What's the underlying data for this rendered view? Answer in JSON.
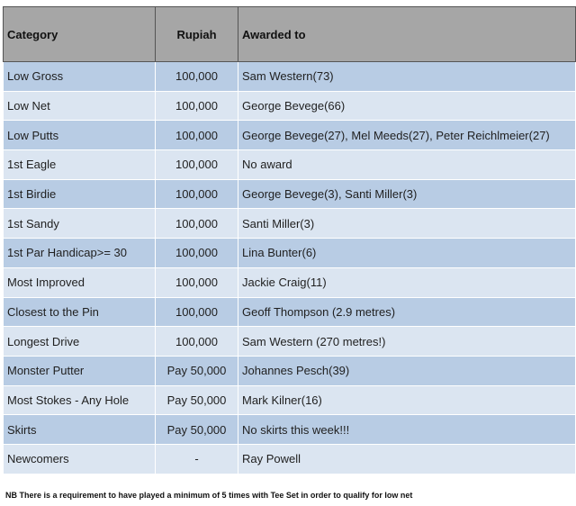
{
  "table": {
    "header": [
      "Category",
      "Rupiah",
      "Awarded to"
    ],
    "rows": [
      [
        "Low Gross",
        "100,000",
        "Sam Western(73)"
      ],
      [
        "Low Net",
        "100,000",
        "George Bevege(66)"
      ],
      [
        "Low Putts",
        "100,000",
        "George Bevege(27), Mel Meeds(27), Peter Reichlmeier(27)"
      ],
      [
        "1st Eagle",
        "100,000",
        "No award"
      ],
      [
        "1st Birdie",
        "100,000",
        "George Bevege(3), Santi Miller(3)"
      ],
      [
        "1st Sandy",
        "100,000",
        "Santi Miller(3)"
      ],
      [
        "1st Par Handicap>= 30",
        "100,000",
        "Lina Bunter(6)"
      ],
      [
        "Most Improved",
        "100,000",
        "Jackie Craig(11)"
      ],
      [
        "Closest to the Pin",
        "100,000",
        "Geoff Thompson (2.9 metres)"
      ],
      [
        "Longest Drive",
        "100,000",
        "Sam Western (270 metres!)"
      ],
      [
        "Monster Putter",
        "Pay 50,000",
        "Johannes Pesch(39)"
      ],
      [
        "Most Stokes - Any Hole",
        "Pay 50,000",
        "Mark Kilner(16)"
      ],
      [
        "Skirts",
        "Pay 50,000",
        "No skirts this week!!!"
      ],
      [
        "Newcomers",
        "-",
        "Ray Powell"
      ]
    ]
  },
  "footnote": "NB There is a requirement to have played a minimum of 5 times with Tee Set in order to qualify for low net"
}
